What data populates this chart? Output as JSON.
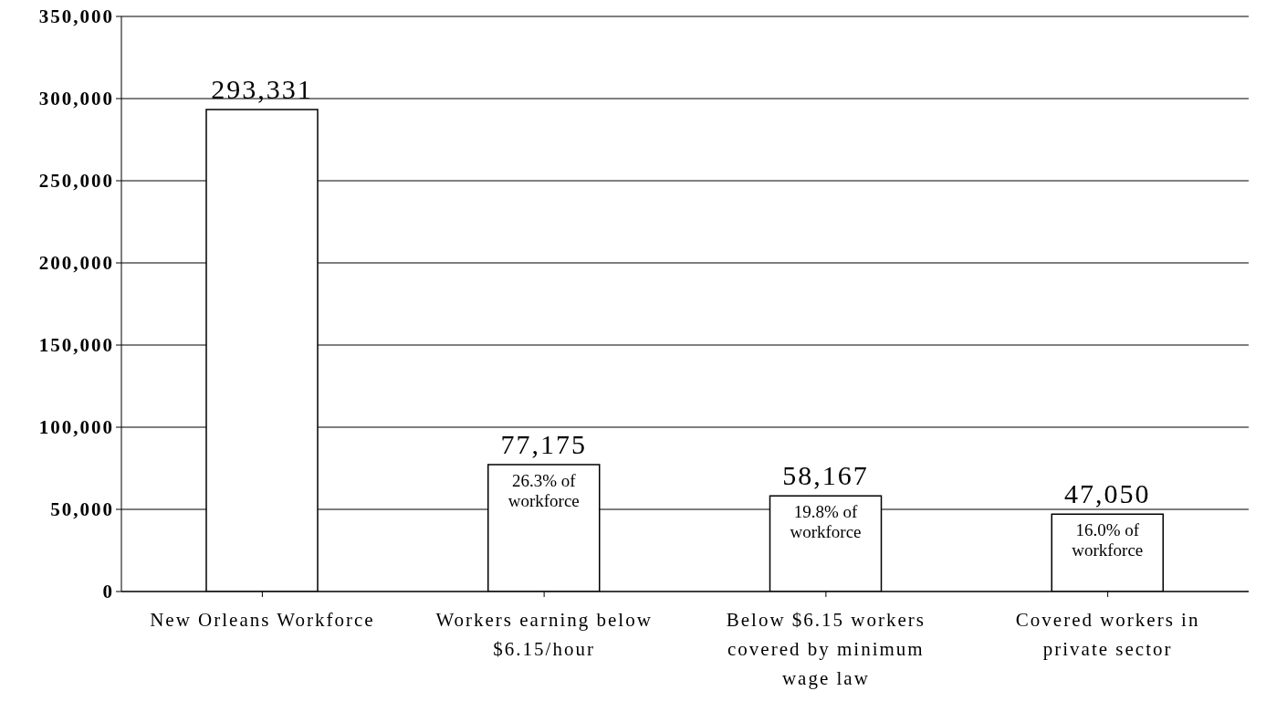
{
  "chart_data": {
    "type": "bar",
    "categories": [
      "New Orleans Workforce",
      "Workers earning below $6.15/hour",
      "Below $6.15 workers covered by minimum wage law",
      "Covered workers in private sector"
    ],
    "values": [
      293331,
      77175,
      58167,
      47050
    ],
    "value_labels": [
      "293,331",
      "77,175",
      "58,167",
      "47,050"
    ],
    "color": "#ffffff",
    "ylim": [
      0,
      350000
    ],
    "yticks": [
      {
        "value": 0,
        "label": "0"
      },
      {
        "value": 50000,
        "label": "50,000"
      },
      {
        "value": 100000,
        "label": "100,000"
      },
      {
        "value": 150000,
        "label": "150,000"
      },
      {
        "value": 200000,
        "label": "200,000"
      },
      {
        "value": 250000,
        "label": "250,000"
      },
      {
        "value": 300000,
        "label": "300,000"
      },
      {
        "value": 350000,
        "label": "350,000"
      }
    ],
    "grid": "y",
    "annotations": [
      {
        "text": "26.3% of workforce",
        "x": "Workers earning below $6.15/hour",
        "y": 77175
      },
      {
        "text": "19.8% of workforce",
        "x": "Below $6.15 workers covered by minimum wage law",
        "y": 58167
      },
      {
        "text": "16.0% of workforce",
        "x": "Covered workers in private sector",
        "y": 47050
      }
    ]
  }
}
